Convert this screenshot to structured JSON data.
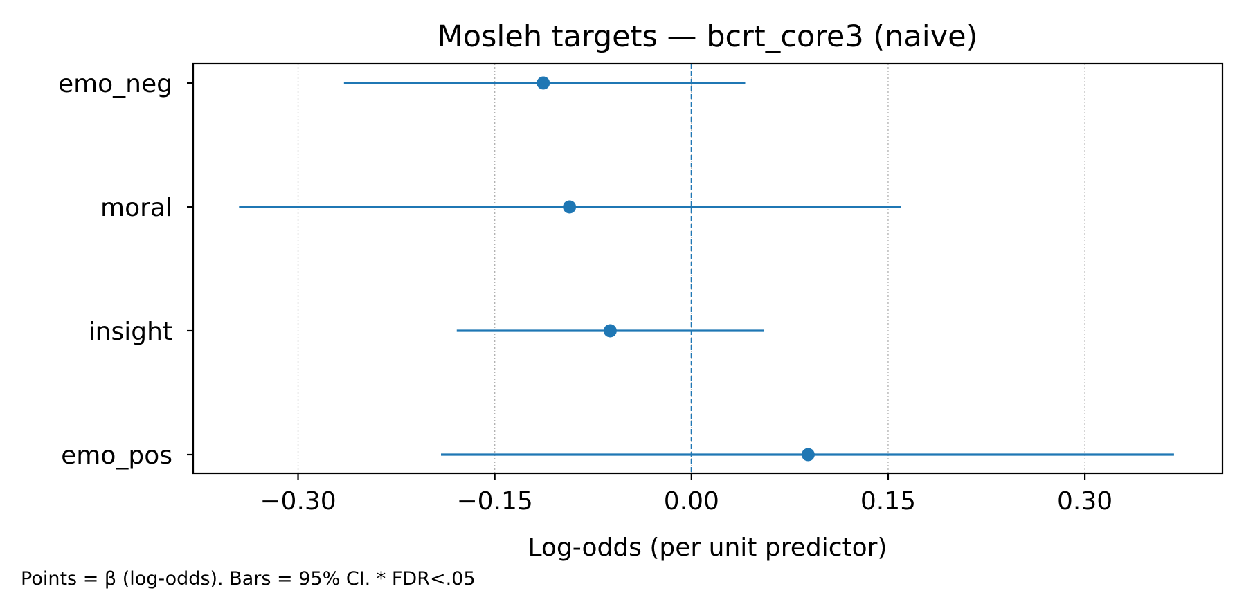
{
  "chart_data": {
    "type": "scatter",
    "subtype": "forest-plot",
    "title": "Mosleh targets — bcrt_core3 (naive)",
    "xlabel": "Log-odds (per unit predictor)",
    "ylabel": "",
    "xlim": [
      -0.38,
      0.405
    ],
    "xticks": [
      -0.3,
      -0.15,
      0.0,
      0.15,
      0.3
    ],
    "xtick_labels": [
      "−0.30",
      "−0.15",
      "0.00",
      "0.15",
      "0.30"
    ],
    "reference_line": 0.0,
    "grid": "x-dotted",
    "color": "#1f77b4",
    "categories": [
      "emo_neg",
      "moral",
      "insight",
      "emo_pos"
    ],
    "estimates": [
      -0.113,
      -0.093,
      -0.062,
      0.089
    ],
    "ci_low": [
      -0.265,
      -0.345,
      -0.179,
      -0.191
    ],
    "ci_high": [
      0.041,
      0.16,
      0.055,
      0.368
    ],
    "footnote": "Points = β (log-odds). Bars = 95% CI. * FDR<.05"
  }
}
